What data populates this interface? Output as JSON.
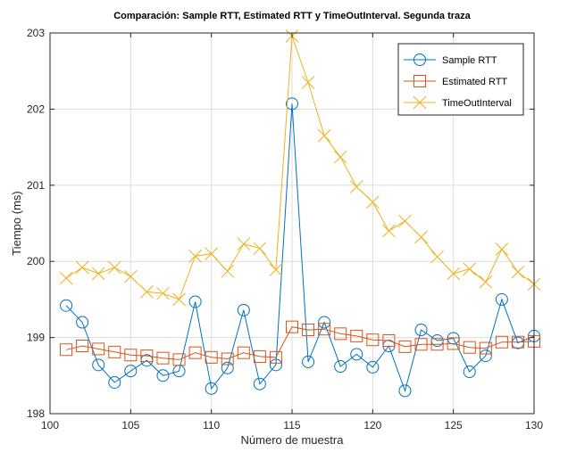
{
  "chart_data": {
    "type": "line",
    "title": "Comparación: Sample RTT, Estimated RTT y TimeOutInterval. Segunda traza",
    "xlabel": "Número de muestra",
    "ylabel": "Tiempo (ms)",
    "xlim": [
      100,
      130
    ],
    "ylim": [
      198,
      203
    ],
    "xticks": [
      100,
      105,
      110,
      115,
      120,
      125,
      130
    ],
    "yticks": [
      198,
      199,
      200,
      201,
      202,
      203
    ],
    "grid": true,
    "legend_position": "top-right",
    "x": [
      101,
      102,
      103,
      104,
      105,
      106,
      107,
      108,
      109,
      110,
      111,
      112,
      113,
      114,
      115,
      116,
      117,
      118,
      119,
      120,
      121,
      122,
      123,
      124,
      125,
      126,
      127,
      128,
      129,
      130
    ],
    "series": [
      {
        "name": "Sample RTT",
        "color": "#0072BD",
        "marker": "circle",
        "values": [
          199.42,
          199.2,
          198.64,
          198.41,
          198.56,
          198.7,
          198.5,
          198.56,
          199.47,
          198.33,
          198.6,
          199.36,
          198.39,
          198.64,
          202.07,
          198.68,
          199.2,
          198.62,
          198.78,
          198.61,
          198.89,
          198.3,
          199.1,
          198.96,
          198.99,
          198.55,
          198.76,
          199.5,
          198.93,
          199.02
        ]
      },
      {
        "name": "Estimated RTT",
        "color": "#D95319",
        "marker": "square",
        "values": [
          198.84,
          198.89,
          198.85,
          198.81,
          198.77,
          198.76,
          198.73,
          198.71,
          198.8,
          198.74,
          198.72,
          198.8,
          198.75,
          198.74,
          199.14,
          199.1,
          199.11,
          199.05,
          199.02,
          198.97,
          198.96,
          198.88,
          198.91,
          198.91,
          198.92,
          198.87,
          198.86,
          198.94,
          198.94,
          198.95
        ]
      },
      {
        "name": "TimeOutInterval",
        "color": "#EDB120",
        "marker": "x",
        "values": [
          199.78,
          199.92,
          199.84,
          199.92,
          199.8,
          199.6,
          199.58,
          199.5,
          200.07,
          200.1,
          199.87,
          200.23,
          200.17,
          199.89,
          202.96,
          202.35,
          201.65,
          201.37,
          200.98,
          200.78,
          200.4,
          200.53,
          200.32,
          200.06,
          199.84,
          199.9,
          199.73,
          200.16,
          199.86,
          199.7
        ]
      }
    ]
  }
}
